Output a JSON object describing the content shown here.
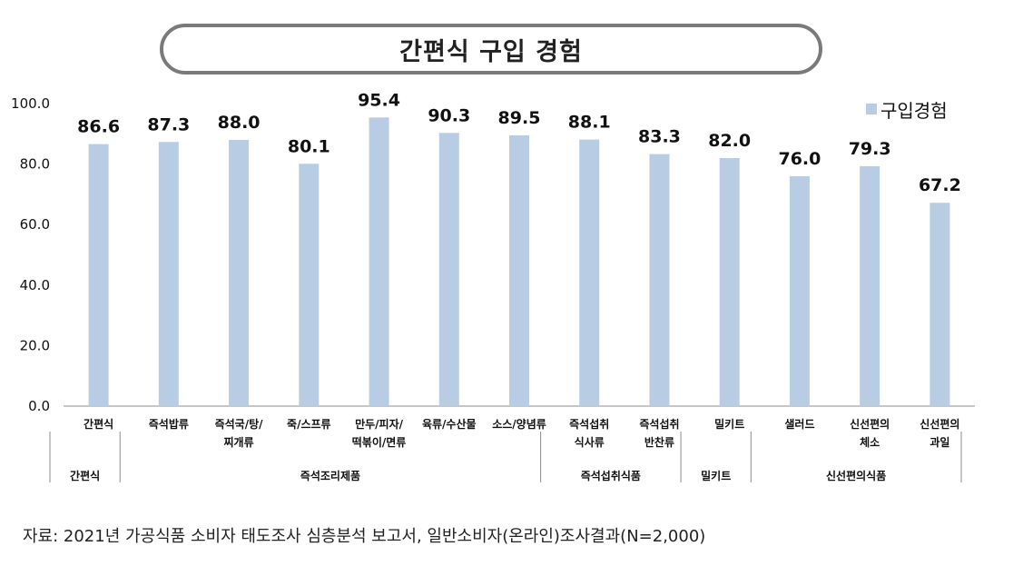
{
  "title": "간편식 구입 경험",
  "source_note": "자료: 2021년 가공식품 소비자 태도조사 심층분석 보고서, 일반소비자(온라인)조사결과(N=2,000)",
  "colors": {
    "bar": "#b8cce4",
    "axis": "#8c8c8c",
    "text": "#111111",
    "title_border": "#7a7a7a"
  },
  "chart_data": {
    "type": "bar",
    "title": "간편식 구입 경험",
    "xlabel": "",
    "ylabel": "",
    "ylim": [
      0,
      100
    ],
    "yticks": [
      "0.0",
      "20.0",
      "40.0",
      "60.0",
      "80.0",
      "100.0"
    ],
    "grid": false,
    "legend_position": "top-right",
    "categories": [
      [
        "간편식"
      ],
      [
        "즉석밥류"
      ],
      [
        "즉석국/탕/",
        "찌개류"
      ],
      [
        "죽/스프류"
      ],
      [
        "만두/피자/",
        "떡볶이/면류"
      ],
      [
        "육류/수산물"
      ],
      [
        "소스/양념류"
      ],
      [
        "즉석섭취",
        "식사류"
      ],
      [
        "즉석섭취",
        "반찬류"
      ],
      [
        "밀키트"
      ],
      [
        "샐러드"
      ],
      [
        "신선편의",
        "체소"
      ],
      [
        "신선편의",
        "과일"
      ]
    ],
    "series": [
      {
        "name": "구입경험",
        "values": [
          86.6,
          87.3,
          88.0,
          80.1,
          95.4,
          90.3,
          89.5,
          88.1,
          83.3,
          82.0,
          76.0,
          79.3,
          67.2
        ],
        "labels": [
          "86.6",
          "87.3",
          "88.0",
          "80.1",
          "95.4",
          "90.3",
          "89.5",
          "88.1",
          "83.3",
          "82.0",
          "76.0",
          "79.3",
          "67.2"
        ]
      }
    ],
    "groups": [
      {
        "label": "간편식",
        "start": 0,
        "end": 0
      },
      {
        "label": "즉석조리제품",
        "start": 1,
        "end": 6
      },
      {
        "label": "즉석섭취식품",
        "start": 7,
        "end": 8
      },
      {
        "label": "밀키트",
        "start": 9,
        "end": 9
      },
      {
        "label": "신선편의식품",
        "start": 10,
        "end": 12
      }
    ]
  }
}
